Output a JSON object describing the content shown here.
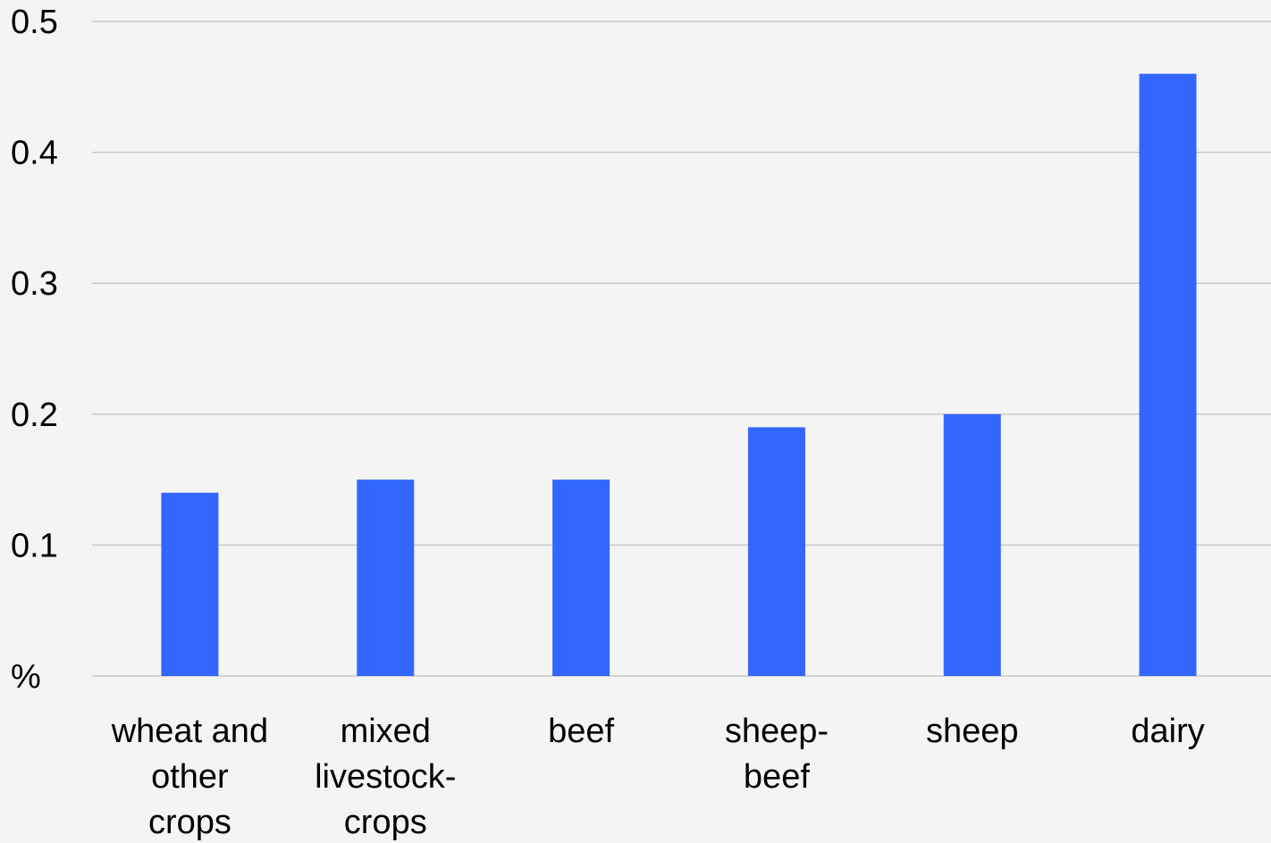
{
  "chart_data": {
    "type": "bar",
    "title": "",
    "xlabel": "",
    "ylabel": "",
    "categories": [
      [
        "wheat and",
        "other",
        "crops"
      ],
      [
        "mixed",
        "livestock-",
        "crops"
      ],
      [
        "beef"
      ],
      [
        "sheep-",
        "beef"
      ],
      [
        "sheep"
      ],
      [
        "dairy"
      ]
    ],
    "values": [
      0.14,
      0.15,
      0.15,
      0.19,
      0.2,
      0.46
    ],
    "ylim": [
      0,
      0.5
    ],
    "y_ticks": [
      "%",
      "0.1",
      "0.2",
      "0.3",
      "0.4",
      "0.5"
    ],
    "y_tick_values": [
      0,
      0.1,
      0.2,
      0.3,
      0.4,
      0.5
    ],
    "grid": true,
    "legend": "none",
    "colors": {
      "bar": "#3366ff",
      "grid": "#c8c8c8",
      "background": "#f4f4f4",
      "text": "#000000"
    }
  }
}
